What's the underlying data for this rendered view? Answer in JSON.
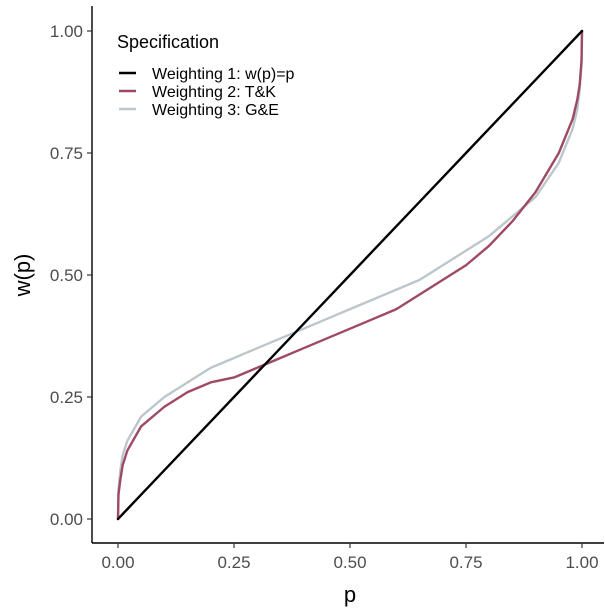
{
  "chart_data": {
    "type": "line",
    "title": "",
    "xlabel": "p",
    "ylabel": "w(p)",
    "xlim": [
      0,
      1
    ],
    "ylim": [
      0,
      1
    ],
    "xticks": [
      0,
      0.25,
      0.5,
      0.75,
      1
    ],
    "yticks": [
      0,
      0.25,
      0.5,
      0.75,
      1
    ],
    "xtick_labels": [
      "0.00",
      "0.25",
      "0.50",
      "0.75",
      "1.00"
    ],
    "ytick_labels": [
      "0.00",
      "0.25",
      "0.50",
      "0.75",
      "1.00"
    ],
    "grid": false,
    "legend": {
      "title": "Specification",
      "placement": "top-left"
    },
    "series": [
      {
        "name": "Weighting 1: w(p)=p",
        "color": "#000000",
        "x": [
          0,
          0.001,
          0.005,
          0.01,
          0.02,
          0.05,
          0.1,
          0.15,
          0.2,
          0.25,
          0.3,
          0.35,
          0.4,
          0.45,
          0.5,
          0.55,
          0.6,
          0.65,
          0.7,
          0.75,
          0.8,
          0.85,
          0.9,
          0.95,
          0.98,
          0.99,
          0.995,
          0.999,
          1
        ],
        "y": [
          0,
          0.001,
          0.005,
          0.01,
          0.02,
          0.05,
          0.1,
          0.15,
          0.2,
          0.25,
          0.3,
          0.35,
          0.4,
          0.45,
          0.5,
          0.55,
          0.6,
          0.65,
          0.7,
          0.75,
          0.8,
          0.85,
          0.9,
          0.95,
          0.98,
          0.99,
          0.995,
          0.999,
          1
        ]
      },
      {
        "name": "Weighting 2: T&K",
        "color": "#9e4a63",
        "x": [
          0,
          0.001,
          0.005,
          0.01,
          0.02,
          0.05,
          0.1,
          0.15,
          0.2,
          0.25,
          0.3,
          0.35,
          0.4,
          0.45,
          0.5,
          0.55,
          0.6,
          0.65,
          0.7,
          0.75,
          0.8,
          0.85,
          0.9,
          0.95,
          0.98,
          0.99,
          0.995,
          0.999,
          1
        ],
        "y": [
          0,
          0.05,
          0.08,
          0.11,
          0.14,
          0.19,
          0.23,
          0.26,
          0.28,
          0.29,
          0.31,
          0.33,
          0.35,
          0.37,
          0.39,
          0.41,
          0.43,
          0.46,
          0.49,
          0.52,
          0.56,
          0.61,
          0.67,
          0.75,
          0.82,
          0.86,
          0.89,
          0.94,
          1
        ]
      },
      {
        "name": "Weighting 3: G&E",
        "color": "#bcc6cc",
        "x": [
          0,
          0.001,
          0.005,
          0.01,
          0.02,
          0.05,
          0.1,
          0.15,
          0.2,
          0.25,
          0.3,
          0.35,
          0.4,
          0.45,
          0.5,
          0.55,
          0.6,
          0.65,
          0.7,
          0.75,
          0.8,
          0.85,
          0.9,
          0.95,
          0.98,
          0.99,
          0.995,
          0.999,
          1
        ],
        "y": [
          0,
          0.06,
          0.1,
          0.13,
          0.16,
          0.21,
          0.25,
          0.28,
          0.31,
          0.33,
          0.35,
          0.37,
          0.39,
          0.41,
          0.43,
          0.45,
          0.47,
          0.49,
          0.52,
          0.55,
          0.58,
          0.62,
          0.66,
          0.73,
          0.8,
          0.84,
          0.88,
          0.93,
          1
        ]
      }
    ]
  }
}
